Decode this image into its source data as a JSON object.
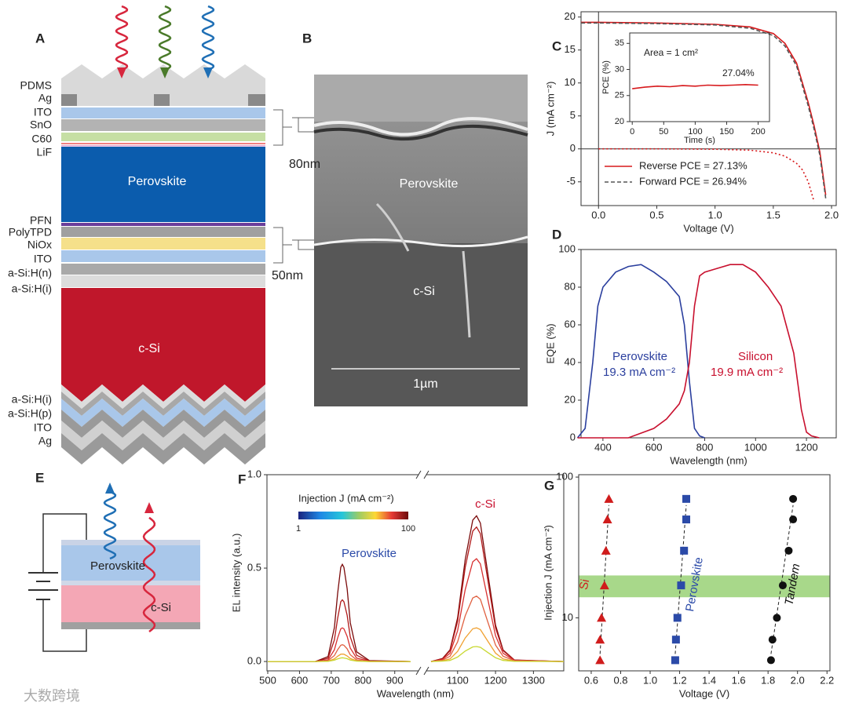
{
  "panel_labels": [
    "A",
    "B",
    "C",
    "D",
    "E",
    "F",
    "G"
  ],
  "layer_stack": {
    "layers": [
      "PDMS",
      "Ag",
      "ITO",
      "SnO",
      "C60",
      "LiF",
      "PFN",
      "PolyTPD",
      "NiOx",
      "ITO",
      "a-Si:H(n)",
      "a-Si:H(i)",
      "a-Si:H(i)",
      "a-Si:H(p)",
      "ITO",
      "Ag"
    ],
    "inner_labels": [
      "Perovskite",
      "c-Si"
    ]
  },
  "sem": {
    "labels": [
      "80nm",
      "50nm",
      "Perovskite",
      "c-Si",
      "1µm"
    ]
  },
  "device": {
    "labels": [
      "Perovskite",
      "c-Si"
    ]
  },
  "watermark": "大数跨境",
  "chart_data": [
    {
      "type": "line",
      "xlabel": "Voltage (V)",
      "ylabel": "J (mA cm⁻²)",
      "xlim": [
        -0.15,
        2.04
      ],
      "ylim": [
        -8.6,
        20.8
      ],
      "xticks": [
        {
          "value": 0,
          "label": "0.0"
        },
        0.5,
        {
          "value": 1,
          "label": "1.0"
        },
        1.5,
        {
          "value": 2,
          "label": "2.0"
        }
      ],
      "yticks": [
        -5,
        0,
        5,
        10,
        15,
        20
      ],
      "zero_lines": true,
      "legend": "lower left",
      "series": [
        {
          "name": "Reverse PCE = 27.13%",
          "color": "#d7191c",
          "dash": "solid",
          "x": [
            -0.15,
            0,
            0.5,
            1.0,
            1.3,
            1.5,
            1.6,
            1.7,
            1.8,
            1.85,
            1.9,
            1.95
          ],
          "values": [
            19.2,
            19.2,
            19.1,
            18.9,
            18.5,
            17.5,
            16.0,
            13,
            7,
            3.5,
            -0.5,
            -7
          ]
        },
        {
          "name": "Forward PCE = 26.94%",
          "color": "#555555",
          "dash": "dashed",
          "x": [
            -0.15,
            0,
            0.5,
            1.0,
            1.3,
            1.5,
            1.6,
            1.7,
            1.8,
            1.85,
            1.9,
            1.95
          ],
          "values": [
            19.1,
            19.1,
            19.0,
            18.8,
            18.3,
            17.2,
            15.6,
            12.6,
            6.5,
            3,
            -1,
            -7.5
          ]
        },
        {
          "color": "#d7191c",
          "dash": "dotted",
          "x": [
            0,
            0.5,
            1.0,
            1.3,
            1.5,
            1.6,
            1.7,
            1.75,
            1.8,
            1.85
          ],
          "values": [
            0,
            0,
            -0.05,
            -0.2,
            -0.6,
            -1.1,
            -2.2,
            -3.2,
            -5,
            -8
          ]
        }
      ]
    },
    {
      "type": "line",
      "xlabel": "Time (s)",
      "ylabel": "PCE (%)",
      "xlim": [
        -4,
        218
      ],
      "ylim": [
        20,
        37
      ],
      "xticks": [
        0,
        50,
        100,
        150,
        200
      ],
      "yticks": [
        20,
        25,
        30,
        35
      ],
      "annotations": [
        "Area = 1 cm²",
        "27.04%"
      ],
      "series": [
        {
          "color": "#d7191c",
          "dash": "solid",
          "x": [
            0,
            20,
            40,
            60,
            80,
            100,
            120,
            140,
            160,
            180,
            200
          ],
          "values": [
            26.3,
            26.6,
            26.8,
            26.7,
            26.9,
            26.8,
            27.0,
            26.9,
            27.0,
            27.1,
            27.0
          ]
        }
      ]
    },
    {
      "type": "line",
      "xlabel": "Wavelength (nm)",
      "ylabel": "EQE (%)",
      "xlim": [
        314,
        1317
      ],
      "ylim": [
        0,
        100
      ],
      "xticks": [
        400,
        600,
        800,
        1000,
        1200
      ],
      "yticks": [
        0,
        20,
        40,
        60,
        80,
        100
      ],
      "annotations": [
        "19.3 mA cm⁻²",
        "19.9 mA cm⁻²"
      ],
      "series": [
        {
          "name": "Perovskite",
          "color": "#2b3f9e",
          "dash": "solid",
          "x": [
            300,
            330,
            360,
            380,
            400,
            450,
            500,
            550,
            600,
            650,
            700,
            720,
            740,
            760,
            780,
            800
          ],
          "values": [
            0,
            5,
            40,
            70,
            80,
            88,
            91,
            92,
            88,
            83,
            75,
            60,
            30,
            5,
            1,
            0
          ]
        },
        {
          "name": "Silicon",
          "color": "#c8102e",
          "dash": "solid",
          "x": [
            300,
            500,
            600,
            650,
            700,
            720,
            740,
            760,
            780,
            800,
            850,
            900,
            950,
            1000,
            1050,
            1100,
            1150,
            1180,
            1200,
            1220,
            1250
          ],
          "values": [
            0,
            0,
            5,
            10,
            18,
            25,
            40,
            70,
            86,
            88,
            90,
            92,
            92,
            88,
            80,
            70,
            45,
            15,
            3,
            1,
            0
          ]
        }
      ]
    },
    {
      "type": "line",
      "xlabel": "Wavelength (nm)",
      "ylabel": "EL intensity (a.u.)",
      "x_segments": [
        {
          "xlim": [
            500,
            960
          ],
          "xticks": [
            500,
            600,
            700,
            800,
            900
          ]
        },
        {
          "xlim": [
            1030,
            1380
          ],
          "xticks": [
            1100,
            1200,
            1300
          ]
        }
      ],
      "ylim": [
        -0.05,
        1.0
      ],
      "yticks": [
        {
          "value": 0,
          "label": "0.0"
        },
        0.5,
        {
          "value": 1,
          "label": "1.0"
        }
      ],
      "annotations": [
        "Perovskite",
        "c-Si"
      ],
      "colorbar": {
        "title": "Injection J (mA cm⁻²)",
        "ticks": [
          1,
          100
        ]
      },
      "x": [
        500,
        650,
        690,
        710,
        720,
        730,
        735,
        740,
        750,
        760,
        780,
        820,
        950,
        1030,
        1060,
        1080,
        1100,
        1120,
        1140,
        1150,
        1160,
        1180,
        1200,
        1220,
        1250,
        1380
      ],
      "series": [
        {
          "color": "#7a0a0a",
          "values": [
            0,
            0,
            0.026,
            0.182,
            0.364,
            0.504,
            0.52,
            0.504,
            0.39,
            0.208,
            0.052,
            0.005,
            0,
            0,
            0.016,
            0.062,
            0.234,
            0.546,
            0.757,
            0.78,
            0.741,
            0.468,
            0.195,
            0.062,
            0.008,
            0
          ]
        },
        {
          "color": "#b01818",
          "values": [
            0,
            0,
            0.017,
            0.116,
            0.231,
            0.32,
            0.33,
            0.32,
            0.248,
            0.132,
            0.033,
            0.003,
            0,
            0,
            0.014,
            0.058,
            0.216,
            0.504,
            0.698,
            0.72,
            0.684,
            0.432,
            0.18,
            0.058,
            0.007,
            0
          ]
        },
        {
          "color": "#d83030",
          "values": [
            0,
            0,
            0.009,
            0.063,
            0.126,
            0.175,
            0.18,
            0.175,
            0.135,
            0.072,
            0.018,
            0.002,
            0,
            0,
            0.011,
            0.044,
            0.165,
            0.385,
            0.534,
            0.55,
            0.523,
            0.33,
            0.138,
            0.044,
            0.006,
            0
          ]
        },
        {
          "color": "#e06040",
          "values": [
            0,
            0,
            0.005,
            0.032,
            0.063,
            0.087,
            0.09,
            0.087,
            0.068,
            0.036,
            0.009,
            0.001,
            0,
            0,
            0.007,
            0.028,
            0.105,
            0.245,
            0.34,
            0.35,
            0.333,
            0.21,
            0.088,
            0.028,
            0.004,
            0
          ]
        },
        {
          "color": "#f0a030",
          "values": [
            0,
            0,
            0.002,
            0.014,
            0.028,
            0.039,
            0.04,
            0.039,
            0.03,
            0.016,
            0.004,
            0,
            0,
            0,
            0.004,
            0.014,
            0.054,
            0.126,
            0.175,
            0.18,
            0.171,
            0.108,
            0.045,
            0.014,
            0.002,
            0
          ]
        },
        {
          "color": "#c8d830",
          "values": [
            0,
            0,
            0.001,
            0.007,
            0.014,
            0.019,
            0.02,
            0.019,
            0.015,
            0.008,
            0.002,
            0,
            0,
            0,
            0.002,
            0.006,
            0.024,
            0.056,
            0.078,
            0.08,
            0.076,
            0.048,
            0.02,
            0.006,
            0.001,
            0
          ]
        }
      ]
    },
    {
      "type": "scatter",
      "xlabel": "Voltage (V)",
      "ylabel": "Injection J (mA cm⁻²)",
      "xlim": [
        0.515,
        2.22
      ],
      "ylim": [
        4.2,
        104
      ],
      "log_y": true,
      "xticks": [
        0.6,
        0.8,
        {
          "value": 1,
          "label": "1.0"
        },
        1.2,
        1.4,
        1.6,
        1.8,
        {
          "value": 2,
          "label": "2.0"
        },
        2.2
      ],
      "yticks": [
        10,
        100
      ],
      "band": [
        14,
        20
      ],
      "band_color": "#a8d88a",
      "series": [
        {
          "name": "Si",
          "color": "#d01c1c",
          "marker": "triangle",
          "x": [
            0.66,
            0.66,
            0.67,
            0.69,
            0.7,
            0.71,
            0.72
          ],
          "values": [
            5,
            7,
            10,
            17,
            30,
            50,
            70
          ]
        },
        {
          "name": "Perovskite",
          "color": "#2b4aa8",
          "marker": "square",
          "x": [
            1.17,
            1.175,
            1.185,
            1.21,
            1.23,
            1.245,
            1.245
          ],
          "values": [
            5,
            7,
            10,
            17,
            30,
            50,
            70
          ]
        },
        {
          "name": "Tandem",
          "color": "#111111",
          "marker": "circle",
          "x": [
            1.82,
            1.83,
            1.86,
            1.9,
            1.94,
            1.97,
            1.97
          ],
          "values": [
            5,
            7,
            10,
            17,
            30,
            50,
            70
          ]
        }
      ]
    }
  ]
}
